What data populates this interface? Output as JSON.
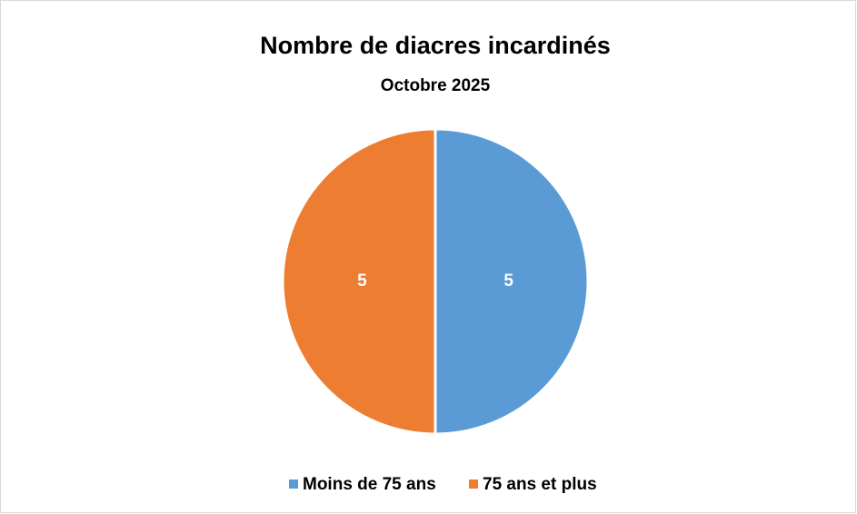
{
  "chart_data": {
    "type": "pie",
    "title": "Nombre de diacres incardinés",
    "subtitle": "Octobre 2025",
    "categories": [
      "Moins de 75 ans",
      "75 ans et plus"
    ],
    "values": [
      5,
      5
    ],
    "colors": [
      "#5b9bd5",
      "#ed7d31"
    ],
    "legend": "bottom"
  }
}
